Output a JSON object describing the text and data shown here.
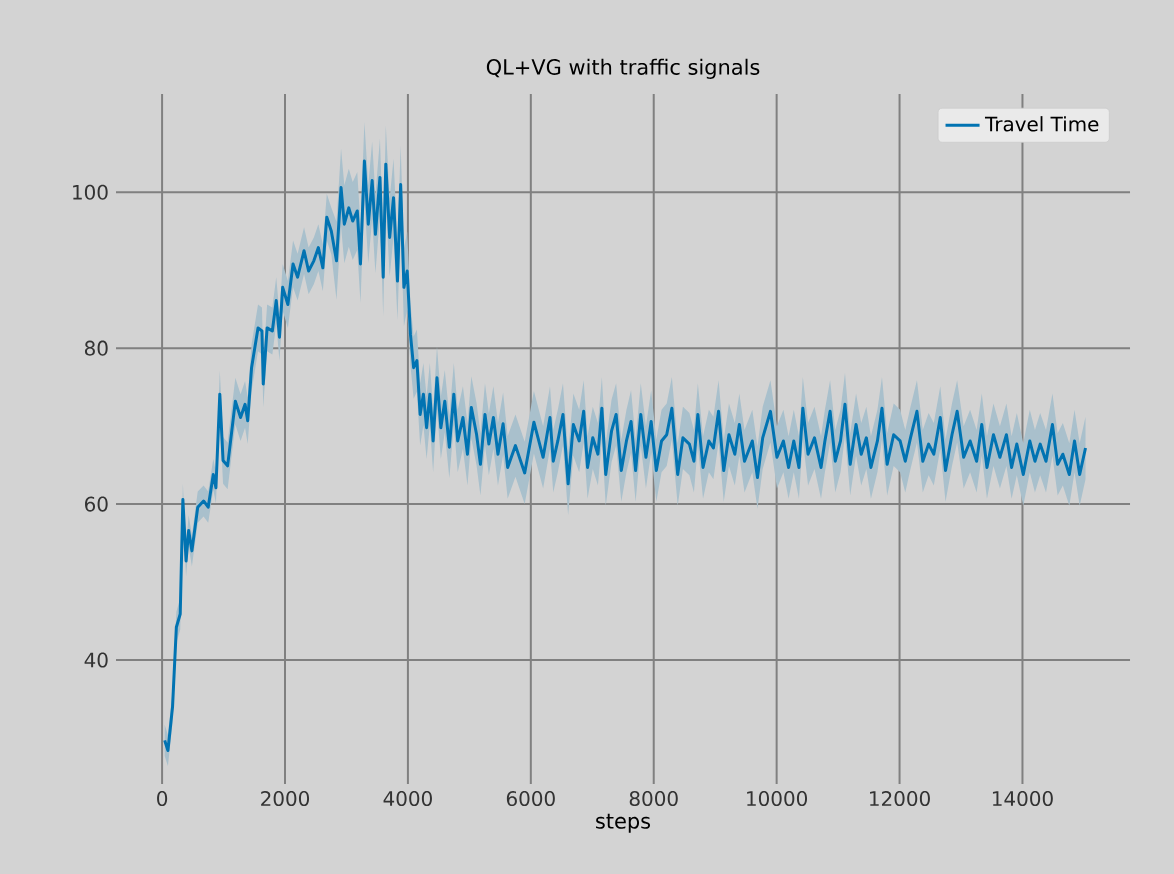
{
  "chart_data": {
    "type": "line",
    "title": "QL+VG with traffic signals",
    "xlabel": "steps",
    "xlim": [
      -750,
      15750
    ],
    "ylim": [
      24.1,
      112.6
    ],
    "xticks": [
      0,
      2000,
      4000,
      6000,
      8000,
      10000,
      12000,
      14000
    ],
    "yticks": [
      40,
      60,
      80,
      100
    ],
    "grid": true,
    "legend": "top right",
    "marker": "none",
    "line_style": "solid",
    "series": [
      {
        "name": "Travel Time",
        "color": "#0173b2",
        "x": [
          42,
          95,
          170,
          232,
          295,
          338,
          390,
          432,
          485,
          580,
          675,
          750,
          833,
          876,
          939,
          992,
          1066,
          1192,
          1277,
          1350,
          1393,
          1456,
          1561,
          1625,
          1646,
          1709,
          1794,
          1857,
          1910,
          1962,
          2047,
          2131,
          2205,
          2310,
          2384,
          2469,
          2543,
          2616,
          2680,
          2754,
          2838,
          2912,
          2965,
          3038,
          3102,
          3176,
          3228,
          3292,
          3355,
          3418,
          3471,
          3545,
          3598,
          3640,
          3703,
          3766,
          3830,
          3882,
          3935,
          3988,
          4041,
          4093,
          4146,
          4199,
          4252,
          4304,
          4357,
          4410,
          4473,
          4536,
          4600,
          4674,
          4747,
          4810,
          4895,
          4969,
          5032,
          5116,
          5180,
          5254,
          5317,
          5391,
          5465,
          5549,
          5623,
          5750,
          5900,
          6050,
          6200,
          6312,
          6365,
          6439,
          6523,
          6607,
          6692,
          6787,
          6860,
          6923,
          7008,
          7092,
          7156,
          7219,
          7314,
          7388,
          7472,
          7556,
          7631,
          7705,
          7789,
          7873,
          7958,
          8042,
          8127,
          8211,
          8295,
          8390,
          8475,
          8580,
          8654,
          8718,
          8802,
          8897,
          8971,
          9055,
          9139,
          9224,
          9319,
          9393,
          9477,
          9604,
          9688,
          9773,
          9899,
          10005,
          10110,
          10194,
          10279,
          10363,
          10426,
          10511,
          10616,
          10722,
          10785,
          10870,
          10954,
          11039,
          11112,
          11197,
          11292,
          11376,
          11460,
          11534,
          11640,
          11714,
          11798,
          11904,
          12009,
          12093,
          12178,
          12283,
          12378,
          12473,
          12557,
          12663,
          12748,
          12853,
          12937,
          13043,
          13148,
          13254,
          13338,
          13422,
          13528,
          13633,
          13739,
          13823,
          13908,
          14013,
          14119,
          14203,
          14288,
          14383,
          14488,
          14572,
          14657,
          14762,
          14847,
          14931,
          15026
        ],
        "values": [
          29.7,
          28.4,
          34,
          44.2,
          45.9,
          60.6,
          52.7,
          56.6,
          54,
          59.6,
          60.4,
          59.6,
          63.8,
          62.1,
          74.1,
          65.6,
          64.9,
          73.2,
          71.1,
          72.8,
          70.7,
          77.5,
          82.6,
          82.2,
          75.4,
          82.6,
          82.2,
          86.1,
          81.4,
          87.8,
          85.6,
          90.8,
          89.1,
          92.5,
          89.9,
          91.2,
          92.9,
          90.3,
          96.8,
          95,
          91.2,
          100.6,
          95.9,
          98,
          96.3,
          97.6,
          90.8,
          104,
          95.9,
          101.5,
          94.6,
          101.9,
          89.1,
          103.6,
          94.2,
          99.3,
          88.6,
          101,
          87.8,
          89.9,
          81.8,
          77.5,
          78.4,
          71.5,
          74.1,
          69.8,
          74.1,
          68.1,
          76.2,
          69.8,
          73.2,
          67.3,
          74.1,
          68.1,
          71.1,
          66.4,
          72.4,
          69,
          65.1,
          71.5,
          67.7,
          71.1,
          66.4,
          70.3,
          64.7,
          67.5,
          64,
          70.5,
          66,
          71.1,
          65.5,
          68.1,
          71.5,
          62.6,
          70.2,
          68.1,
          71.9,
          64.7,
          68.5,
          66.4,
          72.3,
          63.8,
          69.4,
          71.5,
          64.3,
          68.1,
          70.6,
          64.3,
          71.5,
          66,
          70.6,
          64.3,
          68.1,
          68.9,
          72.3,
          63.8,
          68.5,
          67.7,
          65.5,
          71.5,
          64.7,
          68.1,
          67.2,
          71.9,
          64.3,
          68.9,
          66.4,
          70.2,
          65.5,
          68.1,
          63.4,
          68.5,
          71.9,
          66,
          68.1,
          64.7,
          68.1,
          64.7,
          72.3,
          66.4,
          68.5,
          64.7,
          68.1,
          71.9,
          65.5,
          68.1,
          72.8,
          65.1,
          70.2,
          66.4,
          68.5,
          64.7,
          68.1,
          72.3,
          65.1,
          68.9,
          68.1,
          65.5,
          68.5,
          71.9,
          65.5,
          67.7,
          66.4,
          71.1,
          64.3,
          68.9,
          71.9,
          66,
          68.1,
          65.5,
          70.2,
          64.7,
          68.9,
          66,
          68.9,
          64.7,
          67.7,
          63.8,
          68.1,
          65.5,
          67.7,
          65.5,
          70.2,
          65.1,
          66.4,
          63.8,
          68.1,
          63.8,
          67.2
        ],
        "lower": [
          27.7,
          26.4,
          32,
          42.2,
          43.9,
          58.6,
          50.7,
          54.6,
          52,
          57.6,
          58.4,
          57.6,
          61.8,
          60.1,
          71.1,
          62.6,
          61.9,
          70.2,
          68.1,
          69.8,
          67.7,
          74.5,
          79.6,
          79.2,
          72.4,
          79.6,
          79.2,
          83.1,
          78.4,
          84.8,
          82.6,
          87.8,
          86.1,
          89.5,
          86.9,
          88.2,
          89.9,
          87.3,
          93.8,
          92,
          86.2,
          95.6,
          90.9,
          93,
          91.3,
          92.6,
          85.8,
          99,
          90.9,
          96.5,
          89.6,
          96.9,
          84.1,
          98.6,
          89.2,
          94.3,
          83.6,
          96,
          82.8,
          84.9,
          77.8,
          73.5,
          74.4,
          67.5,
          70.1,
          65.8,
          70.1,
          64.1,
          72.2,
          65.8,
          69.2,
          63.3,
          70.1,
          64.1,
          67.1,
          62.4,
          68.4,
          65,
          61.1,
          67.5,
          63.7,
          67.1,
          62.4,
          66.3,
          60.7,
          63.5,
          60,
          66.5,
          62,
          67.1,
          61.5,
          64.1,
          67.5,
          58.6,
          66.2,
          64.1,
          67.9,
          60.7,
          64.5,
          62.4,
          68.3,
          59.8,
          65.4,
          67.5,
          60.3,
          64.1,
          66.6,
          60.3,
          67.5,
          62,
          66.6,
          60.3,
          64.1,
          64.9,
          68.3,
          59.8,
          64.5,
          63.7,
          61.5,
          67.5,
          60.7,
          64.1,
          63.2,
          67.9,
          60.3,
          64.9,
          62.4,
          66.2,
          61.5,
          64.1,
          59.4,
          64.5,
          67.9,
          62,
          64.1,
          60.7,
          64.1,
          60.7,
          68.3,
          62.4,
          64.5,
          60.7,
          64.1,
          67.9,
          61.5,
          64.1,
          68.8,
          61.1,
          66.2,
          62.4,
          64.5,
          60.7,
          64.1,
          68.3,
          61.1,
          64.9,
          64.1,
          61.5,
          64.5,
          67.9,
          61.5,
          63.7,
          62.4,
          67.1,
          60.3,
          64.9,
          67.9,
          62,
          64.1,
          61.5,
          66.2,
          60.7,
          64.9,
          62,
          64.9,
          60.7,
          63.7,
          59.8,
          64.1,
          61.5,
          63.7,
          61.5,
          66.2,
          61.1,
          62.4,
          59.8,
          64.1,
          59.8,
          63.2
        ],
        "upper": [
          31.7,
          30.4,
          36,
          46.2,
          47.9,
          62.6,
          54.7,
          58.6,
          56,
          61.6,
          62.4,
          61.6,
          65.8,
          64.1,
          77.1,
          68.6,
          67.9,
          76.2,
          74.1,
          75.8,
          73.7,
          80.5,
          85.6,
          85.2,
          78.4,
          85.6,
          85.2,
          89.1,
          84.4,
          90.8,
          88.6,
          93.8,
          92.1,
          95.5,
          92.9,
          94.2,
          95.9,
          93.3,
          99.8,
          98,
          96.2,
          105.6,
          100.9,
          103,
          101.3,
          102.6,
          95.8,
          109,
          100.9,
          106.5,
          99.6,
          106.9,
          94.1,
          108.6,
          99.2,
          104.3,
          93.6,
          106,
          92.8,
          94.9,
          85.8,
          81.5,
          82.4,
          75.5,
          78.1,
          73.8,
          78.1,
          72.1,
          80.2,
          73.8,
          77.2,
          71.3,
          78.1,
          72.1,
          75.1,
          70.4,
          76.4,
          73,
          69.1,
          75.5,
          71.7,
          75.1,
          70.4,
          74.3,
          68.7,
          71.5,
          68,
          74.5,
          70,
          75.1,
          69.5,
          72.1,
          75.5,
          66.6,
          74.2,
          72.1,
          75.9,
          68.7,
          72.5,
          70.4,
          76.3,
          67.8,
          73.4,
          75.5,
          68.3,
          72.1,
          74.6,
          68.3,
          75.5,
          70,
          74.6,
          68.3,
          72.1,
          72.9,
          76.3,
          67.8,
          72.5,
          71.7,
          69.5,
          75.5,
          68.7,
          72.1,
          71.2,
          75.9,
          68.3,
          72.9,
          70.4,
          74.2,
          69.5,
          72.1,
          67.4,
          72.5,
          75.9,
          70,
          72.1,
          68.7,
          72.1,
          68.7,
          76.3,
          70.4,
          72.5,
          68.7,
          72.1,
          75.9,
          69.5,
          72.1,
          76.8,
          69.1,
          74.2,
          70.4,
          72.5,
          68.7,
          72.1,
          76.3,
          69.1,
          72.9,
          72.1,
          69.5,
          72.5,
          75.9,
          69.5,
          71.7,
          70.4,
          75.1,
          68.3,
          72.9,
          75.9,
          70,
          72.1,
          69.5,
          74.2,
          68.7,
          72.9,
          70,
          72.9,
          68.7,
          71.7,
          67.8,
          72.1,
          69.5,
          71.7,
          69.5,
          74.2,
          69.1,
          70.4,
          67.8,
          72.1,
          67.8,
          71.2
        ]
      }
    ]
  }
}
